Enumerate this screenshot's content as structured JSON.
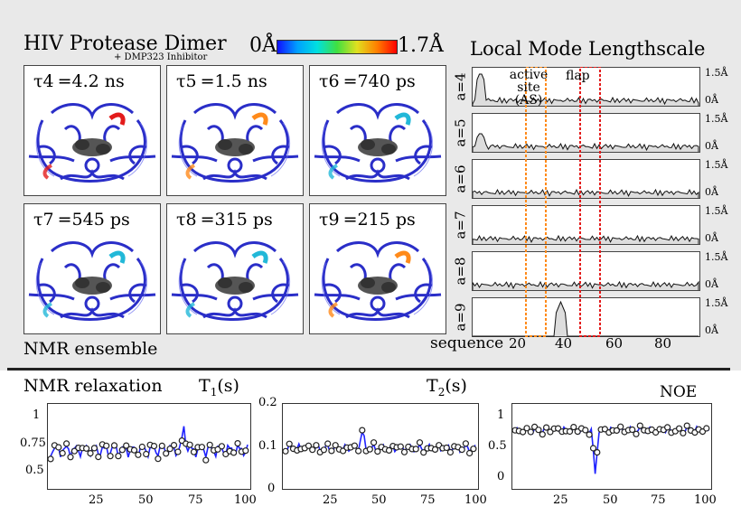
{
  "top_left": {
    "title": "HIV Protease Dimer",
    "subtitle": "+ DMP323 Inhibitor",
    "colorbar_min": "0Å",
    "colorbar_max": "1.7Å",
    "ensemble_label": "NMR ensemble",
    "panels": [
      {
        "tau": "τ4",
        "value": "=4.2 ns",
        "highlight": "red"
      },
      {
        "tau": "τ5",
        "value": "=1.5 ns",
        "highlight": "orange"
      },
      {
        "tau": "τ6",
        "value": "=740 ps",
        "highlight": "cyan"
      },
      {
        "tau": "τ7",
        "value": "=545 ps",
        "highlight": "cyan"
      },
      {
        "tau": "τ8",
        "value": "=315 ps",
        "highlight": "cyan"
      },
      {
        "tau": "τ9",
        "value": "=215 ps",
        "highlight": "orange"
      }
    ]
  },
  "top_right": {
    "title": "Local Mode Lengthscale",
    "rows": [
      "a=4",
      "a=5",
      "a=6",
      "a=7",
      "a=8",
      "a=9"
    ],
    "ytick_top": "1.5Å",
    "ytick_bottom": "0Å",
    "active_site_label": "active site (AS)",
    "flap_label": "flap",
    "xlabel": "sequence",
    "xticks": [
      "20",
      "40",
      "60",
      "80"
    ]
  },
  "bottom": {
    "section_title": "NMR relaxation",
    "t1": {
      "title": "T1(s)",
      "yticks": [
        "1",
        "0.75",
        "0.5"
      ],
      "xticks": [
        "25",
        "50",
        "75",
        "100"
      ]
    },
    "t2": {
      "title": "T2(s)",
      "yticks": [
        "0.2",
        "0.1",
        "0"
      ],
      "xticks": [
        "25",
        "50",
        "75",
        "100"
      ]
    },
    "noe": {
      "title": "NOE",
      "yticks": [
        "1",
        "0.5",
        "0"
      ],
      "xticks": [
        "25",
        "50",
        "75",
        "100"
      ]
    }
  },
  "colors": {
    "backbone": "#2a2ec8",
    "line_blue": "#1f22ff",
    "active_site": "#ff8a1a",
    "flap": "#e31b1b"
  }
}
